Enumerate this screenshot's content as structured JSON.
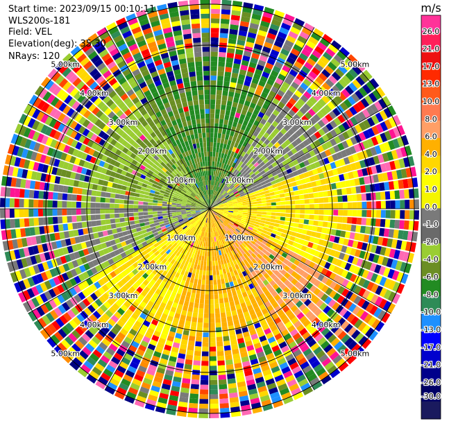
{
  "header": {
    "start_time": "Start time: 2023/09/15 00:10:11",
    "instrument": "WLS200s-181",
    "field": "Field: VEL",
    "elevation": "Elevation(deg): 35.30",
    "nrays": "NRays: 120"
  },
  "chart_data": {
    "type": "ppi",
    "field": "VEL",
    "units": "m/s",
    "range_rings_km": [
      1.0,
      2.0,
      3.0,
      4.0,
      5.0
    ],
    "ring_labels": [
      "1.00km",
      "2.00km",
      "3.00km",
      "4.00km",
      "5.00km"
    ],
    "colorbar": {
      "unit_label": "m/s",
      "ticks": [
        "26.0",
        "21.0",
        "17.0",
        "13.0",
        "10.0",
        "8.0",
        "6.0",
        "4.0",
        "2.0",
        "1.0",
        "0.0",
        "-1.0",
        "-2.0",
        "-4.0",
        "-6.0",
        "-8.0",
        "-10.0",
        "-13.0",
        "-17.0",
        "-21.0",
        "-26.0",
        "-30.0"
      ],
      "colors": [
        "#ff3399",
        "#ff1f5a",
        "#ee1111",
        "#ff2a00",
        "#ff5a1a",
        "#ff7a50",
        "#ff9f66",
        "#ffb000",
        "#ffd700",
        "#ffff00",
        "#f5f500",
        "#7a7a7a",
        "#6a6a6a",
        "#9acd32",
        "#6b8e23",
        "#228b22",
        "#2e8b57",
        "#1e90ff",
        "#0000ff",
        "#0000cd",
        "#00008b",
        "#000066",
        "#1a1a5e"
      ]
    }
  }
}
